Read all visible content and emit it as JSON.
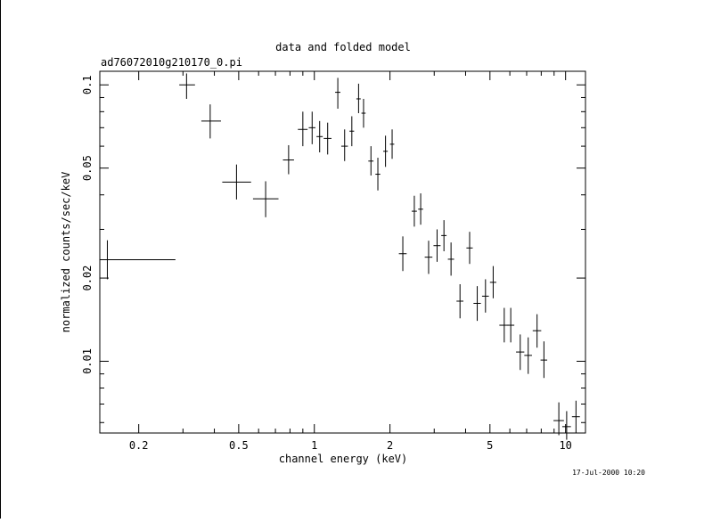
{
  "chart_data": {
    "type": "scatter",
    "title": "data and folded model",
    "subtitle": "ad76072010g210170_0.pi",
    "xlabel": "channel energy (keV)",
    "ylabel": "normalized counts/sec/keV",
    "x_scale": "log",
    "y_scale": "log",
    "xlim": [
      0.14,
      12.0
    ],
    "ylim": [
      0.0055,
      0.112
    ],
    "x_ticks": [
      {
        "value": 0.2,
        "label": "0.2"
      },
      {
        "value": 0.5,
        "label": "0.5"
      },
      {
        "value": 1,
        "label": "1"
      },
      {
        "value": 2,
        "label": "2"
      },
      {
        "value": 5,
        "label": "5"
      },
      {
        "value": 10,
        "label": "10"
      }
    ],
    "y_ticks": [
      {
        "value": 0.01,
        "label": "0.01"
      },
      {
        "value": 0.02,
        "label": "0.02"
      },
      {
        "value": 0.05,
        "label": "0.05"
      },
      {
        "value": 0.1,
        "label": "0.1"
      }
    ],
    "grid": false,
    "series": [
      {
        "points": [
          {
            "x": 0.15,
            "xlo": 0.14,
            "xhi": 0.28,
            "y": 0.0233,
            "ylo": 0.0198,
            "yhi": 0.0274
          },
          {
            "x": 0.31,
            "xlo": 0.29,
            "xhi": 0.335,
            "y": 0.1,
            "ylo": 0.089,
            "yhi": 0.11
          },
          {
            "x": 0.385,
            "xlo": 0.355,
            "xhi": 0.425,
            "y": 0.074,
            "ylo": 0.064,
            "yhi": 0.085
          },
          {
            "x": 0.49,
            "xlo": 0.43,
            "xhi": 0.56,
            "y": 0.0445,
            "ylo": 0.0385,
            "yhi": 0.0515
          },
          {
            "x": 0.64,
            "xlo": 0.57,
            "xhi": 0.72,
            "y": 0.0387,
            "ylo": 0.0332,
            "yhi": 0.0448
          },
          {
            "x": 0.79,
            "xlo": 0.75,
            "xhi": 0.83,
            "y": 0.0535,
            "ylo": 0.0475,
            "yhi": 0.0605
          },
          {
            "x": 0.9,
            "xlo": 0.86,
            "xhi": 0.94,
            "y": 0.069,
            "ylo": 0.06,
            "yhi": 0.08
          },
          {
            "x": 0.98,
            "xlo": 0.95,
            "xhi": 1.01,
            "y": 0.07,
            "ylo": 0.061,
            "yhi": 0.08
          },
          {
            "x": 1.05,
            "xlo": 1.02,
            "xhi": 1.08,
            "y": 0.065,
            "ylo": 0.057,
            "yhi": 0.074
          },
          {
            "x": 1.13,
            "xlo": 1.09,
            "xhi": 1.17,
            "y": 0.064,
            "ylo": 0.056,
            "yhi": 0.073
          },
          {
            "x": 1.24,
            "xlo": 1.21,
            "xhi": 1.27,
            "y": 0.094,
            "ylo": 0.082,
            "yhi": 0.106
          },
          {
            "x": 1.32,
            "xlo": 1.28,
            "xhi": 1.36,
            "y": 0.06,
            "ylo": 0.053,
            "yhi": 0.069
          },
          {
            "x": 1.41,
            "xlo": 1.38,
            "xhi": 1.44,
            "y": 0.068,
            "ylo": 0.06,
            "yhi": 0.077
          },
          {
            "x": 1.5,
            "xlo": 1.47,
            "xhi": 1.53,
            "y": 0.089,
            "ylo": 0.079,
            "yhi": 0.101
          },
          {
            "x": 1.57,
            "xlo": 1.54,
            "xhi": 1.6,
            "y": 0.079,
            "ylo": 0.07,
            "yhi": 0.089
          },
          {
            "x": 1.68,
            "xlo": 1.64,
            "xhi": 1.72,
            "y": 0.053,
            "ylo": 0.047,
            "yhi": 0.06
          },
          {
            "x": 1.79,
            "xlo": 1.75,
            "xhi": 1.83,
            "y": 0.0475,
            "ylo": 0.0415,
            "yhi": 0.0545
          },
          {
            "x": 1.92,
            "xlo": 1.88,
            "xhi": 1.96,
            "y": 0.0575,
            "ylo": 0.0505,
            "yhi": 0.0655
          },
          {
            "x": 2.04,
            "xlo": 2.0,
            "xhi": 2.08,
            "y": 0.061,
            "ylo": 0.054,
            "yhi": 0.069
          },
          {
            "x": 2.25,
            "xlo": 2.17,
            "xhi": 2.33,
            "y": 0.0245,
            "ylo": 0.0212,
            "yhi": 0.0283
          },
          {
            "x": 2.5,
            "xlo": 2.44,
            "xhi": 2.56,
            "y": 0.0349,
            "ylo": 0.0307,
            "yhi": 0.0397
          },
          {
            "x": 2.65,
            "xlo": 2.59,
            "xhi": 2.71,
            "y": 0.0355,
            "ylo": 0.0312,
            "yhi": 0.0405
          },
          {
            "x": 2.85,
            "xlo": 2.75,
            "xhi": 2.95,
            "y": 0.0238,
            "ylo": 0.0207,
            "yhi": 0.0273
          },
          {
            "x": 3.08,
            "xlo": 2.98,
            "xhi": 3.18,
            "y": 0.0262,
            "ylo": 0.0229,
            "yhi": 0.03
          },
          {
            "x": 3.28,
            "xlo": 3.2,
            "xhi": 3.36,
            "y": 0.0285,
            "ylo": 0.025,
            "yhi": 0.0324
          },
          {
            "x": 3.5,
            "xlo": 3.4,
            "xhi": 3.6,
            "y": 0.0234,
            "ylo": 0.0204,
            "yhi": 0.0269
          },
          {
            "x": 3.8,
            "xlo": 3.68,
            "xhi": 3.92,
            "y": 0.0165,
            "ylo": 0.0143,
            "yhi": 0.019
          },
          {
            "x": 4.15,
            "xlo": 4.03,
            "xhi": 4.27,
            "y": 0.0257,
            "ylo": 0.0225,
            "yhi": 0.0294
          },
          {
            "x": 4.45,
            "xlo": 4.3,
            "xhi": 4.6,
            "y": 0.0162,
            "ylo": 0.014,
            "yhi": 0.0187
          },
          {
            "x": 4.8,
            "xlo": 4.65,
            "xhi": 4.95,
            "y": 0.0172,
            "ylo": 0.015,
            "yhi": 0.0198
          },
          {
            "x": 5.15,
            "xlo": 5.0,
            "xhi": 5.3,
            "y": 0.0193,
            "ylo": 0.0169,
            "yhi": 0.0221
          },
          {
            "x": 5.7,
            "xlo": 5.45,
            "xhi": 5.95,
            "y": 0.0135,
            "ylo": 0.0117,
            "yhi": 0.0156
          },
          {
            "x": 6.05,
            "xlo": 5.85,
            "xhi": 6.25,
            "y": 0.0135,
            "ylo": 0.0117,
            "yhi": 0.0156
          },
          {
            "x": 6.6,
            "xlo": 6.35,
            "xhi": 6.85,
            "y": 0.0108,
            "ylo": 0.0093,
            "yhi": 0.0125
          },
          {
            "x": 7.1,
            "xlo": 6.85,
            "xhi": 7.35,
            "y": 0.0105,
            "ylo": 0.009,
            "yhi": 0.0122
          },
          {
            "x": 7.7,
            "xlo": 7.4,
            "xhi": 8.0,
            "y": 0.0129,
            "ylo": 0.0112,
            "yhi": 0.0148
          },
          {
            "x": 8.2,
            "xlo": 7.95,
            "xhi": 8.45,
            "y": 0.0101,
            "ylo": 0.0087,
            "yhi": 0.0118
          },
          {
            "x": 9.4,
            "xlo": 8.95,
            "xhi": 9.85,
            "y": 0.0061,
            "ylo": 0.0054,
            "yhi": 0.0071
          },
          {
            "x": 10.1,
            "xlo": 9.7,
            "xhi": 10.5,
            "y": 0.0058,
            "ylo": 0.0052,
            "yhi": 0.0066
          },
          {
            "x": 11.0,
            "xlo": 10.6,
            "xhi": 11.4,
            "y": 0.0063,
            "ylo": 0.0055,
            "yhi": 0.0072
          }
        ]
      }
    ]
  },
  "timestamp": "17-Jul-2000 10:20"
}
